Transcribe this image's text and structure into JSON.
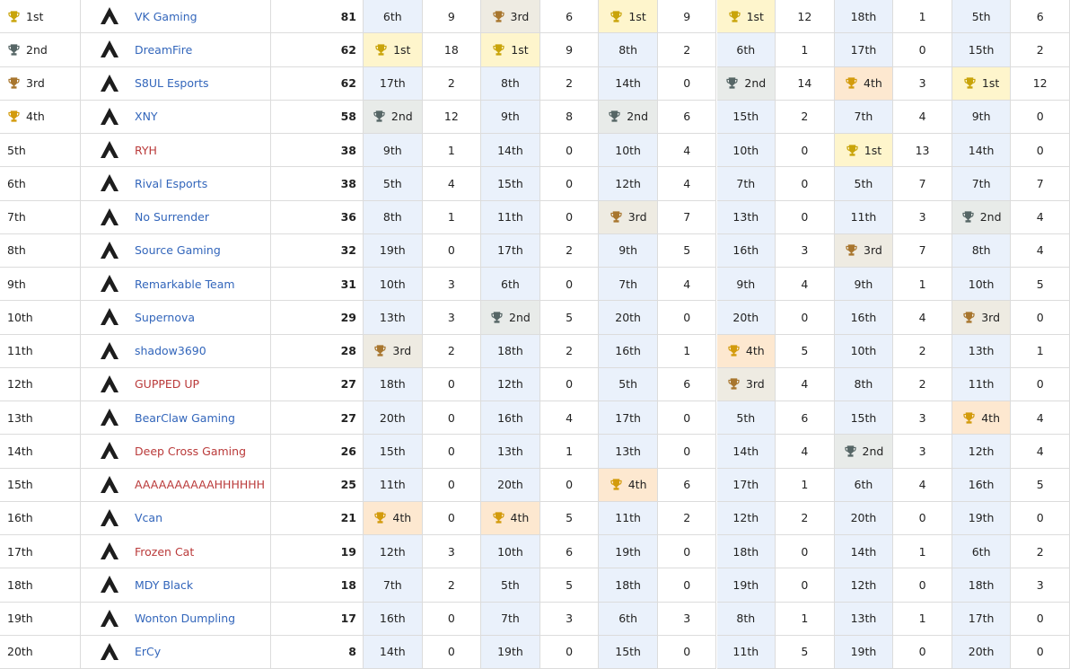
{
  "table": {
    "placement_bg": "#eaf1fb",
    "medals": {
      "1st": {
        "bg": "#fef5cc",
        "trophy": "#c9a40a"
      },
      "2nd": {
        "bg": "#e8ebe9",
        "trophy": "#566666"
      },
      "3rd": {
        "bg": "#eeebe2",
        "trophy": "#a8762e"
      },
      "4th": {
        "bg": "#fde8d0",
        "trophy": "#d39b0c"
      }
    },
    "rows": [
      {
        "rank": "1st",
        "team": "VK Gaming",
        "link_color": "#3366bb",
        "points": 81,
        "results": [
          [
            "6th",
            9
          ],
          [
            "3rd",
            6
          ],
          [
            "1st",
            9
          ],
          [
            "1st",
            12
          ],
          [
            "18th",
            1
          ],
          [
            "5th",
            6
          ]
        ]
      },
      {
        "rank": "2nd",
        "team": "DreamFire",
        "link_color": "#3366bb",
        "points": 62,
        "results": [
          [
            "1st",
            18
          ],
          [
            "1st",
            9
          ],
          [
            "8th",
            2
          ],
          [
            "6th",
            1
          ],
          [
            "17th",
            0
          ],
          [
            "15th",
            2
          ]
        ]
      },
      {
        "rank": "3rd",
        "team": "S8UL Esports",
        "link_color": "#3366bb",
        "points": 62,
        "results": [
          [
            "17th",
            2
          ],
          [
            "8th",
            2
          ],
          [
            "14th",
            0
          ],
          [
            "2nd",
            14
          ],
          [
            "4th",
            3
          ],
          [
            "1st",
            12
          ]
        ]
      },
      {
        "rank": "4th",
        "team": "XNY",
        "link_color": "#3366bb",
        "points": 58,
        "results": [
          [
            "2nd",
            12
          ],
          [
            "9th",
            8
          ],
          [
            "2nd",
            6
          ],
          [
            "15th",
            2
          ],
          [
            "7th",
            4
          ],
          [
            "9th",
            0
          ]
        ]
      },
      {
        "rank": "5th",
        "team": "RYH",
        "link_color": "#ba3a3a",
        "points": 38,
        "results": [
          [
            "9th",
            1
          ],
          [
            "14th",
            0
          ],
          [
            "10th",
            4
          ],
          [
            "10th",
            0
          ],
          [
            "1st",
            13
          ],
          [
            "14th",
            0
          ]
        ]
      },
      {
        "rank": "6th",
        "team": "Rival Esports",
        "link_color": "#3366bb",
        "points": 38,
        "results": [
          [
            "5th",
            4
          ],
          [
            "15th",
            0
          ],
          [
            "12th",
            4
          ],
          [
            "7th",
            0
          ],
          [
            "5th",
            7
          ],
          [
            "7th",
            7
          ]
        ]
      },
      {
        "rank": "7th",
        "team": "No Surrender",
        "link_color": "#3366bb",
        "points": 36,
        "results": [
          [
            "8th",
            1
          ],
          [
            "11th",
            0
          ],
          [
            "3rd",
            7
          ],
          [
            "13th",
            0
          ],
          [
            "11th",
            3
          ],
          [
            "2nd",
            4
          ]
        ]
      },
      {
        "rank": "8th",
        "team": "Source Gaming",
        "link_color": "#3366bb",
        "points": 32,
        "results": [
          [
            "19th",
            0
          ],
          [
            "17th",
            2
          ],
          [
            "9th",
            5
          ],
          [
            "16th",
            3
          ],
          [
            "3rd",
            7
          ],
          [
            "8th",
            4
          ]
        ]
      },
      {
        "rank": "9th",
        "team": "Remarkable Team",
        "link_color": "#3366bb",
        "points": 31,
        "results": [
          [
            "10th",
            3
          ],
          [
            "6th",
            0
          ],
          [
            "7th",
            4
          ],
          [
            "9th",
            4
          ],
          [
            "9th",
            1
          ],
          [
            "10th",
            5
          ]
        ]
      },
      {
        "rank": "10th",
        "team": "Supernova",
        "link_color": "#3366bb",
        "points": 29,
        "results": [
          [
            "13th",
            3
          ],
          [
            "2nd",
            5
          ],
          [
            "20th",
            0
          ],
          [
            "20th",
            0
          ],
          [
            "16th",
            4
          ],
          [
            "3rd",
            0
          ]
        ]
      },
      {
        "rank": "11th",
        "team": "shadow3690",
        "link_color": "#3366bb",
        "points": 28,
        "results": [
          [
            "3rd",
            2
          ],
          [
            "18th",
            2
          ],
          [
            "16th",
            1
          ],
          [
            "4th",
            5
          ],
          [
            "10th",
            2
          ],
          [
            "13th",
            1
          ]
        ]
      },
      {
        "rank": "12th",
        "team": "GUPPED UP",
        "link_color": "#ba3a3a",
        "points": 27,
        "results": [
          [
            "18th",
            0
          ],
          [
            "12th",
            0
          ],
          [
            "5th",
            6
          ],
          [
            "3rd",
            4
          ],
          [
            "8th",
            2
          ],
          [
            "11th",
            0
          ]
        ]
      },
      {
        "rank": "13th",
        "team": "BearClaw Gaming",
        "link_color": "#3366bb",
        "points": 27,
        "results": [
          [
            "20th",
            0
          ],
          [
            "16th",
            4
          ],
          [
            "17th",
            0
          ],
          [
            "5th",
            6
          ],
          [
            "15th",
            3
          ],
          [
            "4th",
            4
          ]
        ]
      },
      {
        "rank": "14th",
        "team": "Deep Cross Gaming",
        "link_color": "#ba3a3a",
        "points": 26,
        "results": [
          [
            "15th",
            0
          ],
          [
            "13th",
            1
          ],
          [
            "13th",
            0
          ],
          [
            "14th",
            4
          ],
          [
            "2nd",
            3
          ],
          [
            "12th",
            4
          ]
        ]
      },
      {
        "rank": "15th",
        "team": "AAAAAAAAAAHHHHHH",
        "link_color": "#ba3a3a",
        "points": 25,
        "results": [
          [
            "11th",
            0
          ],
          [
            "20th",
            0
          ],
          [
            "4th",
            6
          ],
          [
            "17th",
            1
          ],
          [
            "6th",
            4
          ],
          [
            "16th",
            5
          ]
        ]
      },
      {
        "rank": "16th",
        "team": "Vcan",
        "link_color": "#3366bb",
        "points": 21,
        "results": [
          [
            "4th",
            0
          ],
          [
            "4th",
            5
          ],
          [
            "11th",
            2
          ],
          [
            "12th",
            2
          ],
          [
            "20th",
            0
          ],
          [
            "19th",
            0
          ]
        ]
      },
      {
        "rank": "17th",
        "team": "Frozen Cat",
        "link_color": "#ba3a3a",
        "points": 19,
        "results": [
          [
            "12th",
            3
          ],
          [
            "10th",
            6
          ],
          [
            "19th",
            0
          ],
          [
            "18th",
            0
          ],
          [
            "14th",
            1
          ],
          [
            "6th",
            2
          ]
        ]
      },
      {
        "rank": "18th",
        "team": "MDY Black",
        "link_color": "#3366bb",
        "points": 18,
        "results": [
          [
            "7th",
            2
          ],
          [
            "5th",
            5
          ],
          [
            "18th",
            0
          ],
          [
            "19th",
            0
          ],
          [
            "12th",
            0
          ],
          [
            "18th",
            3
          ]
        ]
      },
      {
        "rank": "19th",
        "team": "Wonton Dumpling",
        "link_color": "#3366bb",
        "points": 17,
        "results": [
          [
            "16th",
            0
          ],
          [
            "7th",
            3
          ],
          [
            "6th",
            3
          ],
          [
            "8th",
            1
          ],
          [
            "13th",
            1
          ],
          [
            "17th",
            0
          ]
        ]
      },
      {
        "rank": "20th",
        "team": "ErCy",
        "link_color": "#3366bb",
        "points": 8,
        "results": [
          [
            "14th",
            0
          ],
          [
            "19th",
            0
          ],
          [
            "15th",
            0
          ],
          [
            "11th",
            5
          ],
          [
            "19th",
            0
          ],
          [
            "20th",
            0
          ]
        ]
      }
    ]
  }
}
